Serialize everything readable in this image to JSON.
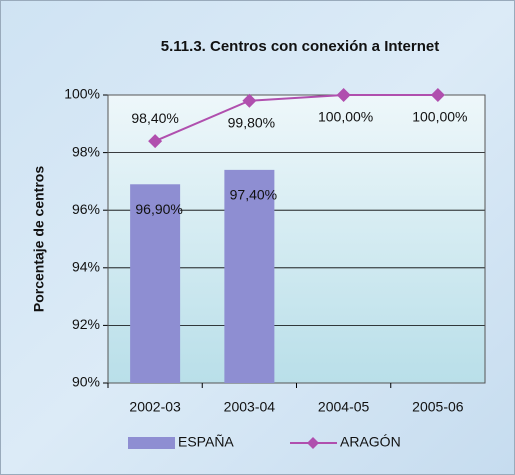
{
  "chart_data": {
    "type": "bar",
    "title": "5.11.3. Centros con conexión a Internet",
    "y_label": "Porcentaje de centros",
    "categories": [
      "2002-03",
      "2003-04",
      "2004-05",
      "2005-06"
    ],
    "series": [
      {
        "name": "ESPAÑA",
        "type": "bar",
        "color": "#8e8ed2",
        "values": [
          96.9,
          97.4,
          null,
          null
        ],
        "value_labels": [
          "96,90%",
          "97,40%",
          null,
          null
        ]
      },
      {
        "name": "ARAGÓN",
        "type": "line",
        "color": "#b04fae",
        "values": [
          98.4,
          99.8,
          100,
          100
        ],
        "value_labels": [
          "98,40%",
          "99,80%",
          "100,00%",
          "100,00%"
        ]
      }
    ],
    "ylim": [
      90,
      100
    ],
    "yticks": [
      {
        "value": 90,
        "label": "90%"
      },
      {
        "value": 92,
        "label": "92%"
      },
      {
        "value": 94,
        "label": "94%"
      },
      {
        "value": 96,
        "label": "96%"
      },
      {
        "value": 98,
        "label": "98%"
      },
      {
        "value": 100,
        "label": "100%"
      }
    ],
    "grid": true,
    "legend": "bottom"
  }
}
